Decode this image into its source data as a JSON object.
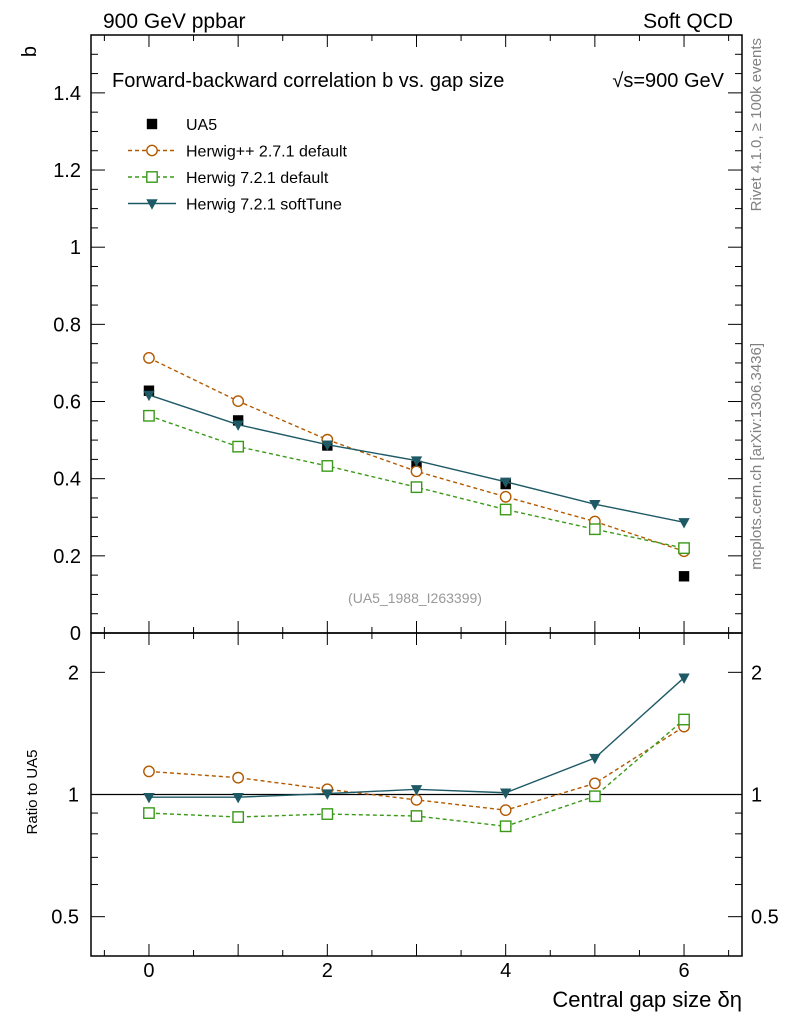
{
  "header": {
    "left": "900 GeV ppbar",
    "right": "Soft QCD"
  },
  "side_text": {
    "rivet": "Rivet 4.1.0, ≥ 100k events",
    "mcplots": "mcplots.cern.ch [arXiv:1306.3436]"
  },
  "chart_data": [
    {
      "type": "line",
      "panel": "main",
      "title": "Forward-backward correlation b  vs. gap size",
      "title_energy": "√s=900 GeV",
      "ylabel": "b",
      "xlabel": "Central gap size δη",
      "watermark": "(UA5_1988_I263399)",
      "xlim": [
        -0.65,
        6.65
      ],
      "ylim": [
        0,
        1.55
      ],
      "x_ticks": [
        0,
        2,
        4,
        6
      ],
      "x_tick_labels": [
        "0",
        "2",
        "4",
        "6"
      ],
      "y_ticks": [
        0,
        0.2,
        0.4,
        0.6,
        0.8,
        1,
        1.2,
        1.4
      ],
      "y_tick_labels": [
        "0",
        "0.2",
        "0.4",
        "0.6",
        "0.8",
        "1",
        "1.2",
        "1.4"
      ],
      "legend_position": "top-left",
      "x": [
        0,
        1,
        2,
        3,
        4,
        5,
        6
      ],
      "series": [
        {
          "name": "UA5",
          "kind": "data",
          "color": "#000000",
          "marker": "filled-square",
          "values": [
            0.628,
            0.551,
            0.486,
            0.433,
            0.386,
            0.271,
            0.147
          ]
        },
        {
          "name": "Herwig++ 2.7.1 default",
          "kind": "mc",
          "color": "#b35a00",
          "marker": "open-circle",
          "dashed": true,
          "values": [
            0.713,
            0.601,
            0.501,
            0.419,
            0.353,
            0.289,
            0.212
          ]
        },
        {
          "name": "Herwig 7.2.1 default",
          "kind": "mc",
          "color": "#3a9a18",
          "marker": "open-square",
          "dashed": true,
          "values": [
            0.563,
            0.483,
            0.433,
            0.378,
            0.32,
            0.269,
            0.22
          ]
        },
        {
          "name": "Herwig 7.2.1 softTune",
          "kind": "mc",
          "color": "#1e5a66",
          "marker": "filled-triangle-down",
          "dashed": false,
          "values": [
            0.617,
            0.54,
            0.488,
            0.447,
            0.392,
            0.334,
            0.287
          ]
        }
      ]
    },
    {
      "type": "line",
      "panel": "ratio",
      "ylabel": "Ratio to UA5",
      "xlim": [
        -0.65,
        6.65
      ],
      "ylim": [
        0.4,
        2.5
      ],
      "yscale": "log",
      "y_ticks": [
        0.5,
        1,
        2
      ],
      "y_tick_labels": [
        "0.5",
        "1",
        "2"
      ],
      "x": [
        0,
        1,
        2,
        3,
        4,
        5,
        6
      ],
      "series": [
        {
          "name": "Herwig++ 2.7.1 default",
          "color": "#b35a00",
          "marker": "open-circle",
          "dashed": true,
          "values": [
            1.14,
            1.1,
            1.03,
            0.97,
            0.915,
            1.065,
            1.47
          ]
        },
        {
          "name": "Herwig 7.2.1 default",
          "color": "#3a9a18",
          "marker": "open-square",
          "dashed": true,
          "values": [
            0.9,
            0.88,
            0.895,
            0.885,
            0.835,
            0.99,
            1.53
          ]
        },
        {
          "name": "Herwig 7.2.1 softTune",
          "color": "#1e5a66",
          "marker": "filled-triangle-down",
          "dashed": false,
          "values": [
            0.985,
            0.985,
            1.005,
            1.03,
            1.01,
            1.23,
            1.94
          ]
        }
      ]
    }
  ]
}
